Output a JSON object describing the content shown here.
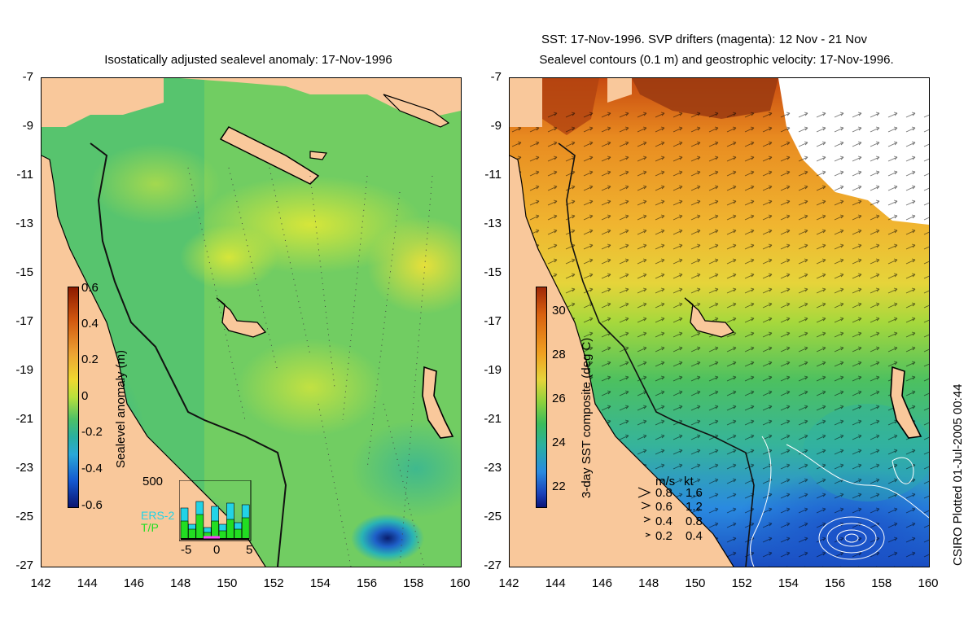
{
  "left_panel": {
    "title": "Isostatically adjusted sealevel anomaly: 17-Nov-1996",
    "colorbar_label": "Sealevel anomaly (m)",
    "colorbar_ticks": [
      "0.6",
      "0.4",
      "0.2",
      "0",
      "-0.2",
      "-0.4",
      "-0.6"
    ],
    "inset": {
      "ymax_label": "500",
      "legend": [
        "ERS-2",
        "T/P"
      ],
      "xticks": [
        "-5",
        "0",
        "5"
      ],
      "colors": {
        "ers2": "#22d3e6",
        "tp": "#22dd22",
        "marker": "#ff44ff"
      }
    }
  },
  "right_panel": {
    "title_line1": "SST: 17-Nov-1996. SVP drifters (magenta): 12 Nov - 21 Nov",
    "title_line2": "Sealevel contours (0.1 m) and geostrophic velocity: 17-Nov-1996.",
    "colorbar_label": "3-day SST composite (deg C)",
    "colorbar_ticks": [
      "30",
      "28",
      "26",
      "24",
      "22"
    ],
    "speed_legend": {
      "header_ms": "m/s",
      "header_kt": "kt",
      "rows": [
        {
          "ms": "0.8",
          "kt": "1.6"
        },
        {
          "ms": "0.6",
          "kt": "1.2"
        },
        {
          "ms": "0.4",
          "kt": "0.8"
        },
        {
          "ms": "0.2",
          "kt": "0.4"
        }
      ]
    }
  },
  "axes": {
    "y_ticks": [
      "-7",
      "-9",
      "-11",
      "-13",
      "-15",
      "-17",
      "-19",
      "-21",
      "-23",
      "-25",
      "-27"
    ],
    "x_ticks": [
      "142",
      "144",
      "146",
      "148",
      "150",
      "152",
      "154",
      "156",
      "158",
      "160"
    ]
  },
  "credit": "CSIRO Plotted 01-Jul-2005 00:44",
  "colors": {
    "land": "#f9c89b",
    "ocean_mid": "#5dc86a",
    "ocean_yellow": "#c8e23c",
    "sst_orange": "#f0a020",
    "sst_blue": "#1a6fd6"
  }
}
